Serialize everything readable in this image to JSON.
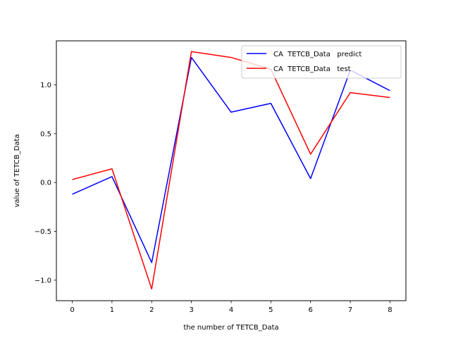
{
  "chart_data": {
    "type": "line",
    "title": "",
    "xlabel": "the number of TETCB_Data",
    "ylabel": "value of TETCB_Data",
    "x": [
      0,
      1,
      2,
      3,
      4,
      5,
      6,
      7,
      8
    ],
    "x_ticks": [
      0,
      1,
      2,
      3,
      4,
      5,
      6,
      7,
      8
    ],
    "y_ticks": [
      -1.0,
      -0.5,
      0.0,
      0.5,
      1.0
    ],
    "y_tick_labels": [
      "−1.0",
      "−0.5",
      "0.0",
      "0.5",
      "1.0"
    ],
    "xlim": [
      -0.4,
      8.4
    ],
    "ylim": [
      -1.21,
      1.45
    ],
    "grid": false,
    "legend_position": "top-right",
    "series": [
      {
        "name": "CA  TETCB_Data   predict",
        "color": "#0000ff",
        "values": [
          -0.12,
          0.06,
          -0.82,
          1.28,
          0.72,
          0.81,
          0.04,
          1.15,
          0.94
        ]
      },
      {
        "name": "CA  TETCB_Data   test",
        "color": "#ff0000",
        "values": [
          0.03,
          0.14,
          -1.09,
          1.34,
          1.28,
          1.16,
          0.29,
          0.92,
          0.87
        ]
      }
    ]
  }
}
